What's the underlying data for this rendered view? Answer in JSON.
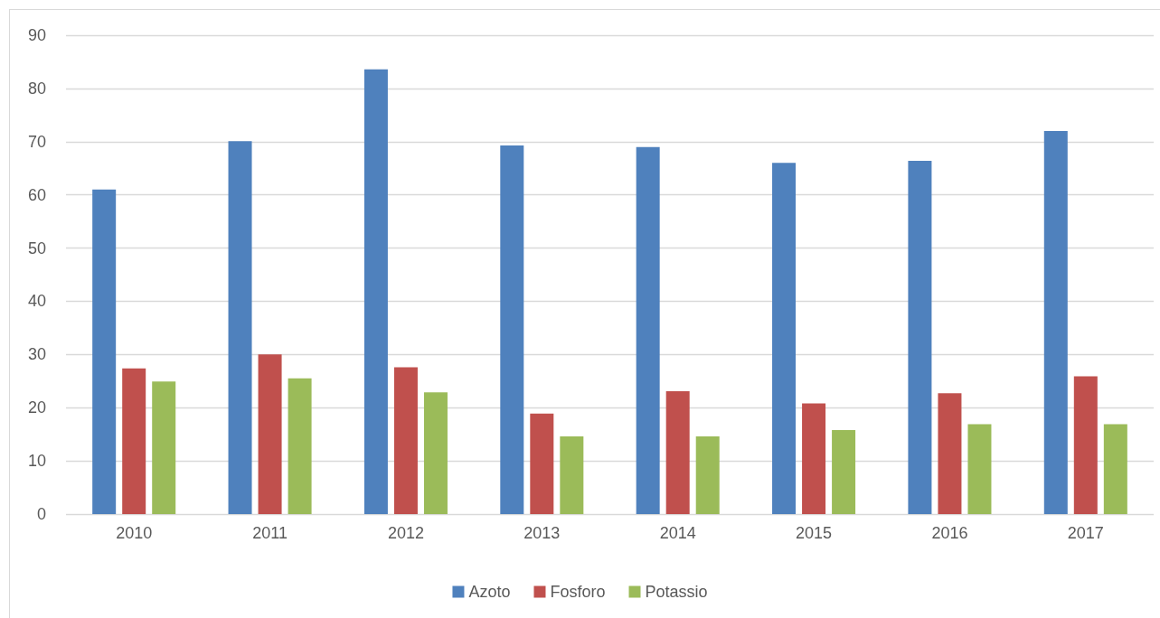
{
  "chart_data": {
    "type": "bar",
    "categories": [
      "2010",
      "2011",
      "2012",
      "2013",
      "2014",
      "2015",
      "2016",
      "2017"
    ],
    "series": [
      {
        "name": "Azoto",
        "color": "#4f81bd",
        "values": [
          61.0,
          70.1,
          83.6,
          69.3,
          69.0,
          66.0,
          66.4,
          72.0
        ]
      },
      {
        "name": "Fosforo",
        "color": "#c0504d",
        "values": [
          27.4,
          30.0,
          27.6,
          18.9,
          23.1,
          20.8,
          22.7,
          25.9
        ]
      },
      {
        "name": "Potassio",
        "color": "#9bbb59",
        "values": [
          24.9,
          25.5,
          22.9,
          14.6,
          14.6,
          15.8,
          16.9,
          16.9
        ]
      }
    ],
    "ylim": [
      0,
      90
    ],
    "yticks": [
      0,
      10,
      20,
      30,
      40,
      50,
      60,
      70,
      80,
      90
    ],
    "grid": "y",
    "legend": "bottom"
  }
}
